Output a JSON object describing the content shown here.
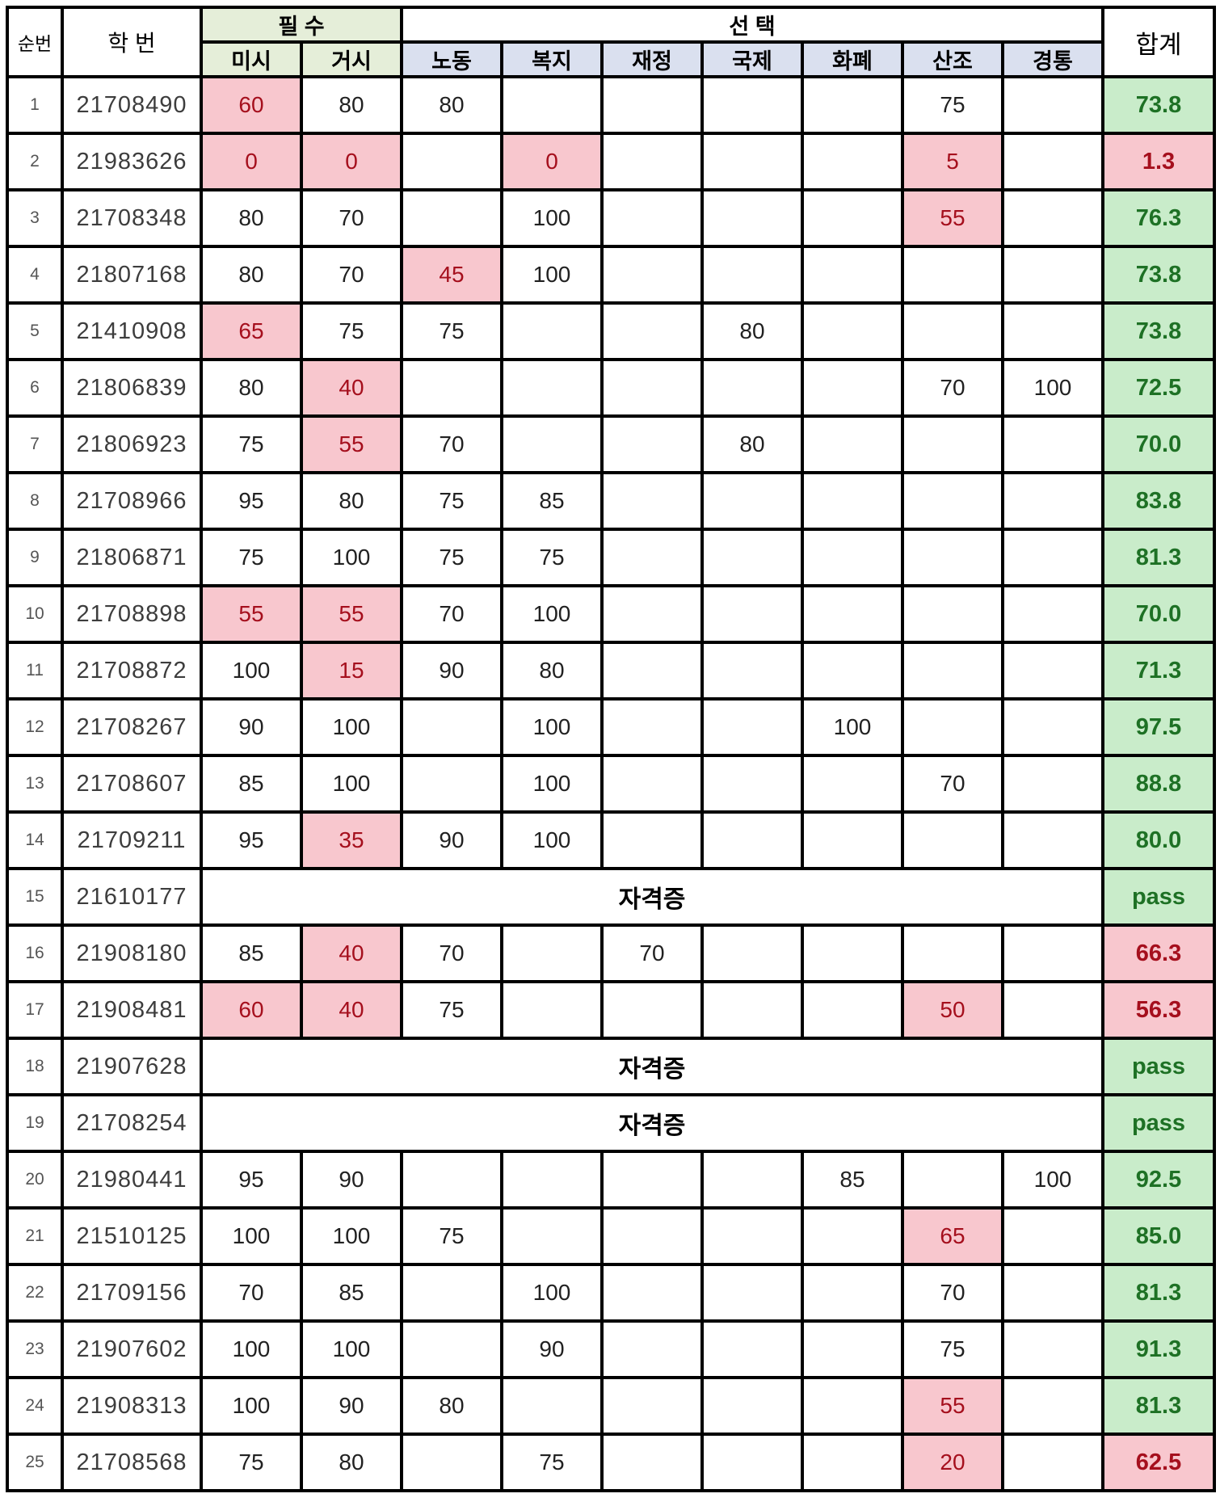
{
  "colors": {
    "low_bg": "#f8c7ce",
    "low_text": "#a50f1d",
    "good_bg": "#c9ecca",
    "good_text": "#1e7125",
    "required_header_bg": "#e5eed9",
    "elective_header_bg": "#dae0ef"
  },
  "header": {
    "seq": "순번",
    "student_id": "학  번",
    "required": "필  수",
    "elective": "선  택",
    "total": "합계",
    "required_subs": [
      "미시",
      "거시"
    ],
    "elective_subs": [
      "노동",
      "복지",
      "재정",
      "국제",
      "화폐",
      "산조",
      "경통"
    ]
  },
  "cert_label": "자격증",
  "rows": [
    {
      "no": "1",
      "id": "21708490",
      "scores": [
        {
          "v": "60",
          "low": true
        },
        {
          "v": "80"
        },
        {
          "v": "80"
        },
        null,
        null,
        null,
        null,
        {
          "v": "75"
        },
        null
      ],
      "total": {
        "v": "73.8",
        "status": "good"
      }
    },
    {
      "no": "2",
      "id": "21983626",
      "scores": [
        {
          "v": "0",
          "low": true
        },
        {
          "v": "0",
          "low": true
        },
        null,
        {
          "v": "0",
          "low": true
        },
        null,
        null,
        null,
        {
          "v": "5",
          "low": true
        },
        null
      ],
      "total": {
        "v": "1.3",
        "status": "bad"
      }
    },
    {
      "no": "3",
      "id": "21708348",
      "scores": [
        {
          "v": "80"
        },
        {
          "v": "70"
        },
        null,
        {
          "v": "100"
        },
        null,
        null,
        null,
        {
          "v": "55",
          "low": true
        },
        null
      ],
      "total": {
        "v": "76.3",
        "status": "good"
      }
    },
    {
      "no": "4",
      "id": "21807168",
      "scores": [
        {
          "v": "80"
        },
        {
          "v": "70"
        },
        {
          "v": "45",
          "low": true
        },
        {
          "v": "100"
        },
        null,
        null,
        null,
        null,
        null
      ],
      "total": {
        "v": "73.8",
        "status": "good"
      }
    },
    {
      "no": "5",
      "id": "21410908",
      "scores": [
        {
          "v": "65",
          "low": true
        },
        {
          "v": "75"
        },
        {
          "v": "75"
        },
        null,
        null,
        {
          "v": "80"
        },
        null,
        null,
        null
      ],
      "total": {
        "v": "73.8",
        "status": "good"
      }
    },
    {
      "no": "6",
      "id": "21806839",
      "scores": [
        {
          "v": "80"
        },
        {
          "v": "40",
          "low": true
        },
        null,
        null,
        null,
        null,
        null,
        {
          "v": "70"
        },
        {
          "v": "100"
        }
      ],
      "total": {
        "v": "72.5",
        "status": "good"
      }
    },
    {
      "no": "7",
      "id": "21806923",
      "scores": [
        {
          "v": "75"
        },
        {
          "v": "55",
          "low": true
        },
        {
          "v": "70"
        },
        null,
        null,
        {
          "v": "80"
        },
        null,
        null,
        null
      ],
      "total": {
        "v": "70.0",
        "status": "good"
      }
    },
    {
      "no": "8",
      "id": "21708966",
      "scores": [
        {
          "v": "95"
        },
        {
          "v": "80"
        },
        {
          "v": "75"
        },
        {
          "v": "85"
        },
        null,
        null,
        null,
        null,
        null
      ],
      "total": {
        "v": "83.8",
        "status": "good"
      }
    },
    {
      "no": "9",
      "id": "21806871",
      "scores": [
        {
          "v": "75"
        },
        {
          "v": "100"
        },
        {
          "v": "75"
        },
        {
          "v": "75"
        },
        null,
        null,
        null,
        null,
        null
      ],
      "total": {
        "v": "81.3",
        "status": "good"
      }
    },
    {
      "no": "10",
      "id": "21708898",
      "scores": [
        {
          "v": "55",
          "low": true
        },
        {
          "v": "55",
          "low": true
        },
        {
          "v": "70"
        },
        {
          "v": "100"
        },
        null,
        null,
        null,
        null,
        null
      ],
      "total": {
        "v": "70.0",
        "status": "good"
      }
    },
    {
      "no": "11",
      "id": "21708872",
      "scores": [
        {
          "v": "100"
        },
        {
          "v": "15",
          "low": true
        },
        {
          "v": "90"
        },
        {
          "v": "80"
        },
        null,
        null,
        null,
        null,
        null
      ],
      "total": {
        "v": "71.3",
        "status": "good"
      }
    },
    {
      "no": "12",
      "id": "21708267",
      "scores": [
        {
          "v": "90"
        },
        {
          "v": "100"
        },
        null,
        {
          "v": "100"
        },
        null,
        null,
        {
          "v": "100"
        },
        null,
        null
      ],
      "total": {
        "v": "97.5",
        "status": "good"
      }
    },
    {
      "no": "13",
      "id": "21708607",
      "scores": [
        {
          "v": "85"
        },
        {
          "v": "100"
        },
        null,
        {
          "v": "100"
        },
        null,
        null,
        null,
        {
          "v": "70"
        },
        null
      ],
      "total": {
        "v": "88.8",
        "status": "good"
      }
    },
    {
      "no": "14",
      "id": "21709211",
      "scores": [
        {
          "v": "95"
        },
        {
          "v": "35",
          "low": true
        },
        {
          "v": "90"
        },
        {
          "v": "100"
        },
        null,
        null,
        null,
        null,
        null
      ],
      "total": {
        "v": "80.0",
        "status": "good"
      }
    },
    {
      "no": "15",
      "id": "21610177",
      "cert": true,
      "total": {
        "v": "pass",
        "status": "good"
      }
    },
    {
      "no": "16",
      "id": "21908180",
      "scores": [
        {
          "v": "85"
        },
        {
          "v": "40",
          "low": true
        },
        {
          "v": "70"
        },
        null,
        {
          "v": "70"
        },
        null,
        null,
        null,
        null
      ],
      "total": {
        "v": "66.3",
        "status": "bad"
      }
    },
    {
      "no": "17",
      "id": "21908481",
      "scores": [
        {
          "v": "60",
          "low": true
        },
        {
          "v": "40",
          "low": true
        },
        {
          "v": "75"
        },
        null,
        null,
        null,
        null,
        {
          "v": "50",
          "low": true
        },
        null
      ],
      "total": {
        "v": "56.3",
        "status": "bad"
      }
    },
    {
      "no": "18",
      "id": "21907628",
      "cert": true,
      "total": {
        "v": "pass",
        "status": "good"
      }
    },
    {
      "no": "19",
      "id": "21708254",
      "cert": true,
      "total": {
        "v": "pass",
        "status": "good"
      }
    },
    {
      "no": "20",
      "id": "21980441",
      "scores": [
        {
          "v": "95"
        },
        {
          "v": "90"
        },
        null,
        null,
        null,
        null,
        {
          "v": "85"
        },
        null,
        {
          "v": "100"
        }
      ],
      "total": {
        "v": "92.5",
        "status": "good"
      }
    },
    {
      "no": "21",
      "id": "21510125",
      "scores": [
        {
          "v": "100"
        },
        {
          "v": "100"
        },
        {
          "v": "75"
        },
        null,
        null,
        null,
        null,
        {
          "v": "65",
          "low": true
        },
        null
      ],
      "total": {
        "v": "85.0",
        "status": "good"
      }
    },
    {
      "no": "22",
      "id": "21709156",
      "scores": [
        {
          "v": "70"
        },
        {
          "v": "85"
        },
        null,
        {
          "v": "100"
        },
        null,
        null,
        null,
        {
          "v": "70"
        },
        null
      ],
      "total": {
        "v": "81.3",
        "status": "good"
      }
    },
    {
      "no": "23",
      "id": "21907602",
      "scores": [
        {
          "v": "100"
        },
        {
          "v": "100"
        },
        null,
        {
          "v": "90"
        },
        null,
        null,
        null,
        {
          "v": "75"
        },
        null
      ],
      "total": {
        "v": "91.3",
        "status": "good"
      }
    },
    {
      "no": "24",
      "id": "21908313",
      "scores": [
        {
          "v": "100"
        },
        {
          "v": "90"
        },
        {
          "v": "80"
        },
        null,
        null,
        null,
        null,
        {
          "v": "55",
          "low": true
        },
        null
      ],
      "total": {
        "v": "81.3",
        "status": "good"
      }
    },
    {
      "no": "25",
      "id": "21708568",
      "scores": [
        {
          "v": "75"
        },
        {
          "v": "80"
        },
        null,
        {
          "v": "75"
        },
        null,
        null,
        null,
        {
          "v": "20",
          "low": true
        },
        null
      ],
      "total": {
        "v": "62.5",
        "status": "bad"
      }
    }
  ]
}
